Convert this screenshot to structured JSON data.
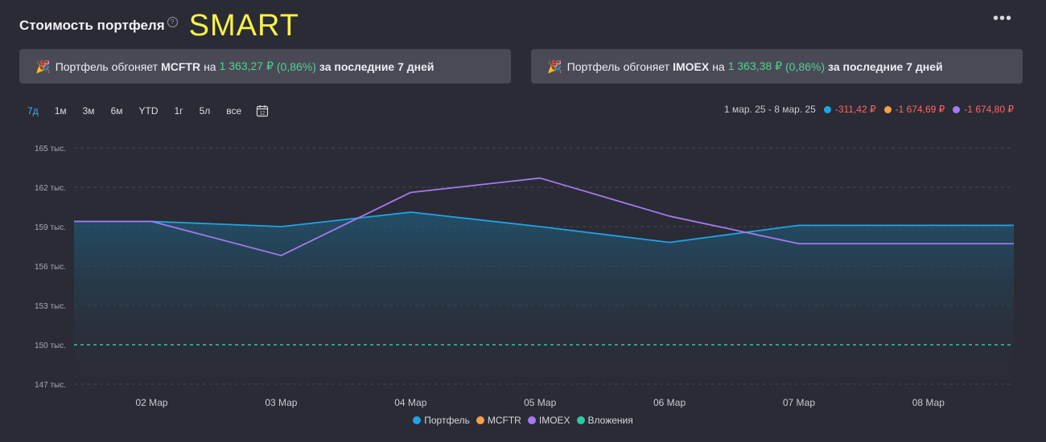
{
  "header": {
    "title": "Стоимость портфеля",
    "help": "?",
    "overlay_text": "SMART",
    "more": "•••"
  },
  "banners": [
    {
      "emoji": "🎉",
      "prefix": "Портфель обгоняет",
      "index": "MCFTR",
      "on": "на",
      "amount": "1 363,27 ₽",
      "percent": "(0,86%)",
      "suffix": "за последние 7 дней"
    },
    {
      "emoji": "🎉",
      "prefix": "Портфель обгоняет",
      "index": "IMOEX",
      "on": "на",
      "amount": "1 363,38 ₽",
      "percent": "(0,86%)",
      "suffix": "за последние 7 дней"
    }
  ],
  "periods": [
    {
      "label": "7д",
      "active": true
    },
    {
      "label": "1м",
      "active": false
    },
    {
      "label": "3м",
      "active": false
    },
    {
      "label": "6м",
      "active": false
    },
    {
      "label": "YTD",
      "active": false
    },
    {
      "label": "1г",
      "active": false
    },
    {
      "label": "5л",
      "active": false
    },
    {
      "label": "все",
      "active": false
    }
  ],
  "calendar_icon": "calendar-icon",
  "calendar_day": "12",
  "summary": {
    "range": "1 мар. 25 - 8 мар. 25",
    "items": [
      {
        "color": "#1fa3e6",
        "value": "-311,42 ₽"
      },
      {
        "color": "#f5a04a",
        "value": "-1 674,69 ₽"
      },
      {
        "color": "#a47af0",
        "value": "-1 674,80 ₽"
      }
    ]
  },
  "colors": {
    "portfolio": "#1fa3e6",
    "mcftr": "#f5a04a",
    "imoex": "#a47af0",
    "invest": "#2fc9a3",
    "positive": "#4ed38e",
    "negative": "#ff6464",
    "active_period": "#3db3ff"
  },
  "chart_data": {
    "type": "line",
    "y_ticks": [
      {
        "value": 165,
        "label": "165 тыс."
      },
      {
        "value": 162,
        "label": "162 тыс."
      },
      {
        "value": 159,
        "label": "159 тыс."
      },
      {
        "value": 156,
        "label": "156 тыс."
      },
      {
        "value": 153,
        "label": "153 тыс."
      },
      {
        "value": 150,
        "label": "150 тыс."
      },
      {
        "value": 147,
        "label": "147 тыс."
      }
    ],
    "ylim": [
      147,
      165
    ],
    "x_ticks": [
      "02 Мар",
      "03 Мар",
      "04 Мар",
      "05 Мар",
      "06 Мар",
      "07 Мар",
      "08 Мар"
    ],
    "xlim": [
      0.4,
      7.66
    ],
    "grid": true,
    "legend_position": "bottom-center",
    "series": [
      {
        "name": "Портфель",
        "color": "#1fa3e6",
        "x": [
          0.4,
          1.0,
          2.0,
          3.0,
          4.0,
          5.0,
          6.0,
          7.66
        ],
        "y": [
          159.4,
          159.4,
          159.0,
          160.1,
          159.0,
          157.8,
          159.1,
          159.1
        ],
        "fill": true
      },
      {
        "name": "MCFTR",
        "color": "#f5a04a",
        "x": [],
        "y": []
      },
      {
        "name": "IMOEX",
        "color": "#a47af0",
        "x": [
          0.4,
          1.0,
          2.0,
          3.0,
          4.0,
          5.0,
          6.0,
          7.66
        ],
        "y": [
          159.4,
          159.4,
          156.8,
          161.6,
          162.7,
          159.8,
          157.7,
          157.7
        ]
      },
      {
        "name": "Вложения",
        "color": "#2fc9a3",
        "x": [
          0.4,
          7.66
        ],
        "y": [
          150,
          150
        ],
        "dashed": true
      }
    ]
  }
}
